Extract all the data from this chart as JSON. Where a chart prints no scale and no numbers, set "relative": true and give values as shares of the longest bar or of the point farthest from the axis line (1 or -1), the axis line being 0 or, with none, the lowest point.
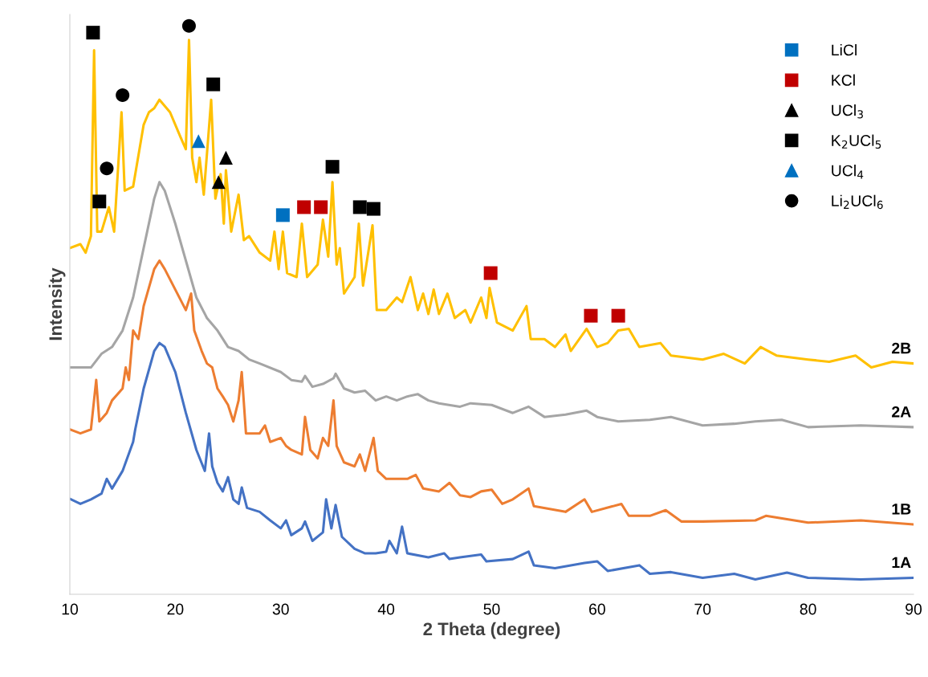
{
  "chart_data": {
    "type": "line",
    "relative": true,
    "xlabel": "2 Theta (degree)",
    "ylabel": "Intensity",
    "xlim": [
      10,
      90
    ],
    "xticks": [
      10,
      20,
      30,
      40,
      50,
      60,
      70,
      80,
      90
    ],
    "grid": false,
    "legend": "top right",
    "marker": "none",
    "line_style": "solid",
    "series": [
      {
        "name": "1A",
        "color": "#4472c4",
        "x": [
          10,
          11,
          12,
          13,
          13.5,
          14,
          15,
          16,
          16.2,
          17,
          18,
          18.5,
          19,
          20,
          21,
          22,
          22.8,
          23.2,
          23.5,
          24,
          24.5,
          25,
          25.5,
          26,
          26.3,
          26.8,
          28,
          29,
          30,
          30.5,
          31,
          32,
          32.3,
          33,
          34,
          34.3,
          34.8,
          35.2,
          35.8,
          37,
          38,
          39,
          40,
          40.3,
          41,
          41.5,
          42,
          44,
          45.5,
          46,
          47,
          49,
          49.5,
          52,
          53.5,
          54,
          56,
          58.8,
          60,
          61,
          64,
          65,
          67,
          70,
          73,
          75,
          78,
          80,
          85,
          90
        ],
        "values": [
          0.168,
          0.159,
          0.167,
          0.177,
          0.203,
          0.186,
          0.217,
          0.268,
          0.29,
          0.362,
          0.428,
          0.442,
          0.435,
          0.391,
          0.319,
          0.254,
          0.217,
          0.283,
          0.225,
          0.196,
          0.181,
          0.206,
          0.167,
          0.159,
          0.188,
          0.152,
          0.145,
          0.13,
          0.116,
          0.13,
          0.104,
          0.116,
          0.128,
          0.094,
          0.109,
          0.167,
          0.116,
          0.157,
          0.101,
          0.08,
          0.072,
          0.072,
          0.075,
          0.094,
          0.072,
          0.119,
          0.072,
          0.065,
          0.072,
          0.062,
          0.065,
          0.07,
          0.058,
          0.062,
          0.075,
          0.051,
          0.046,
          0.055,
          0.058,
          0.041,
          0.051,
          0.036,
          0.039,
          0.029,
          0.036,
          0.026,
          0.038,
          0.029,
          0.026,
          0.029
        ]
      },
      {
        "name": "1B",
        "color": "#ed7d31",
        "x": [
          10,
          11,
          12,
          12.5,
          12.8,
          13.5,
          14,
          15,
          15.3,
          15.6,
          16,
          16.5,
          17,
          18,
          18.5,
          19,
          20,
          21,
          21.5,
          21.8,
          22.5,
          23,
          23.5,
          24,
          24.5,
          25,
          25.5,
          26,
          26.3,
          26.7,
          28,
          28.5,
          29,
          30,
          30.5,
          31,
          32,
          32.3,
          32.8,
          33.5,
          34,
          34.5,
          35,
          35.3,
          36,
          37,
          37.5,
          38,
          38.8,
          39.2,
          40,
          42,
          42.8,
          43.5,
          45,
          46,
          47,
          48,
          49,
          50,
          51,
          52,
          53.5,
          54,
          57,
          58.8,
          59.5,
          62.3,
          63,
          65,
          66.5,
          68,
          70,
          75,
          76,
          80,
          85,
          90
        ],
        "values": [
          0.29,
          0.283,
          0.29,
          0.377,
          0.304,
          0.319,
          0.341,
          0.362,
          0.399,
          0.377,
          0.464,
          0.449,
          0.507,
          0.572,
          0.587,
          0.572,
          0.536,
          0.5,
          0.529,
          0.464,
          0.428,
          0.406,
          0.399,
          0.362,
          0.348,
          0.333,
          0.304,
          0.341,
          0.391,
          0.283,
          0.283,
          0.297,
          0.268,
          0.275,
          0.261,
          0.254,
          0.246,
          0.312,
          0.254,
          0.239,
          0.275,
          0.261,
          0.341,
          0.261,
          0.232,
          0.225,
          0.246,
          0.217,
          0.275,
          0.217,
          0.203,
          0.203,
          0.21,
          0.186,
          0.181,
          0.196,
          0.174,
          0.171,
          0.181,
          0.184,
          0.159,
          0.167,
          0.186,
          0.155,
          0.145,
          0.167,
          0.145,
          0.159,
          0.138,
          0.138,
          0.148,
          0.128,
          0.128,
          0.13,
          0.138,
          0.126,
          0.13,
          0.123
        ]
      },
      {
        "name": "2A",
        "color": "#a5a5a5",
        "x": [
          10,
          12,
          13,
          14,
          15,
          16,
          17,
          18,
          18.5,
          19,
          20,
          21,
          22,
          23,
          24,
          25,
          26,
          27,
          28,
          30,
          31,
          32,
          32.3,
          33,
          34,
          35,
          35.2,
          36,
          37,
          38,
          39,
          40,
          41,
          42,
          43,
          44,
          45,
          47,
          48,
          50,
          52,
          53.5,
          55,
          57,
          59,
          60,
          62,
          65,
          67,
          70,
          73,
          75,
          77.5,
          80,
          85,
          90
        ],
        "values": [
          0.399,
          0.399,
          0.423,
          0.435,
          0.464,
          0.522,
          0.609,
          0.696,
          0.725,
          0.71,
          0.652,
          0.587,
          0.522,
          0.486,
          0.464,
          0.435,
          0.428,
          0.413,
          0.406,
          0.391,
          0.377,
          0.374,
          0.384,
          0.365,
          0.37,
          0.38,
          0.388,
          0.362,
          0.355,
          0.358,
          0.341,
          0.348,
          0.341,
          0.348,
          0.352,
          0.341,
          0.336,
          0.33,
          0.336,
          0.333,
          0.319,
          0.33,
          0.312,
          0.316,
          0.323,
          0.312,
          0.304,
          0.307,
          0.312,
          0.297,
          0.3,
          0.304,
          0.307,
          0.294,
          0.297,
          0.294
        ]
      },
      {
        "name": "2B",
        "color": "#ffc000",
        "x": [
          10,
          11,
          11.5,
          12,
          12.3,
          12.6,
          13,
          13.7,
          14.2,
          14.9,
          15.2,
          16,
          17,
          17.5,
          18,
          18.5,
          19.5,
          20.5,
          21,
          21.3,
          21.6,
          22,
          22.3,
          22.7,
          23.4,
          23.8,
          24.3,
          24.6,
          24.8,
          25.3,
          26,
          26.5,
          27,
          28,
          29,
          29.4,
          29.8,
          30.2,
          30.6,
          31.5,
          32,
          32.5,
          33.5,
          34,
          34.5,
          34.9,
          35.3,
          35.6,
          36,
          37,
          37.4,
          37.8,
          38.7,
          39.1,
          40,
          41,
          41.5,
          42.3,
          43,
          43.5,
          44,
          44.5,
          45,
          45.8,
          46.5,
          47.5,
          48,
          49,
          49.5,
          49.8,
          50.5,
          52,
          53.3,
          53.7,
          55,
          56,
          57,
          57.5,
          59,
          60,
          61,
          62,
          63,
          64,
          66,
          67,
          70,
          72,
          74,
          75.5,
          77,
          80,
          82,
          84.5,
          86,
          88,
          90
        ],
        "values": [
          0.609,
          0.616,
          0.601,
          0.63,
          0.957,
          0.638,
          0.638,
          0.681,
          0.638,
          0.848,
          0.71,
          0.717,
          0.826,
          0.848,
          0.855,
          0.87,
          0.848,
          0.804,
          0.783,
          0.975,
          0.768,
          0.725,
          0.768,
          0.703,
          0.87,
          0.696,
          0.739,
          0.652,
          0.746,
          0.638,
          0.703,
          0.623,
          0.63,
          0.601,
          0.587,
          0.638,
          0.572,
          0.638,
          0.565,
          0.558,
          0.652,
          0.558,
          0.58,
          0.659,
          0.594,
          0.725,
          0.58,
          0.609,
          0.529,
          0.558,
          0.652,
          0.543,
          0.649,
          0.5,
          0.5,
          0.522,
          0.514,
          0.558,
          0.5,
          0.529,
          0.493,
          0.536,
          0.493,
          0.529,
          0.486,
          0.5,
          0.478,
          0.522,
          0.486,
          0.539,
          0.478,
          0.464,
          0.507,
          0.449,
          0.449,
          0.435,
          0.457,
          0.428,
          0.467,
          0.435,
          0.442,
          0.464,
          0.467,
          0.435,
          0.442,
          0.42,
          0.413,
          0.423,
          0.406,
          0.435,
          0.42,
          0.413,
          0.409,
          0.42,
          0.399,
          0.409,
          0.406
        ]
      },
      {
        "type": "scatter",
        "name": "LiCl",
        "color": "#0070c0",
        "marker": "square",
        "x": [
          30.2
        ],
        "values": [
          0.667
        ]
      },
      {
        "type": "scatter",
        "name": "KCl",
        "color": "#c00000",
        "marker": "square",
        "x": [
          32.2,
          33.8,
          49.9,
          59.4,
          62
        ],
        "values": [
          0.681,
          0.681,
          0.565,
          0.49,
          0.49
        ]
      },
      {
        "type": "scatter",
        "name": "UCl$_{3}$",
        "color": "#000000",
        "marker": "triangle",
        "x": [
          24.8,
          24.1
        ],
        "values": [
          0.768,
          0.725
        ]
      },
      {
        "type": "scatter",
        "name": "K$_{2}$UCl$_{5}$",
        "color": "#000000",
        "marker": "square",
        "x": [
          12.2,
          12.8,
          23.6,
          34.9,
          37.5,
          38.8
        ],
        "values": [
          0.988,
          0.691,
          0.897,
          0.752,
          0.681,
          0.678
        ]
      },
      {
        "type": "scatter",
        "name": "UCl$_{4}$",
        "color": "#0070c0",
        "marker": "triangle",
        "x": [
          22.2
        ],
        "values": [
          0.797
        ]
      },
      {
        "type": "scatter",
        "name": "Li$_{2}$UCl$_{6}$",
        "color": "#000000",
        "marker": "circle",
        "x": [
          21.3,
          15,
          13.5
        ],
        "values": [
          1,
          0.878,
          0.749
        ]
      }
    ]
  }
}
